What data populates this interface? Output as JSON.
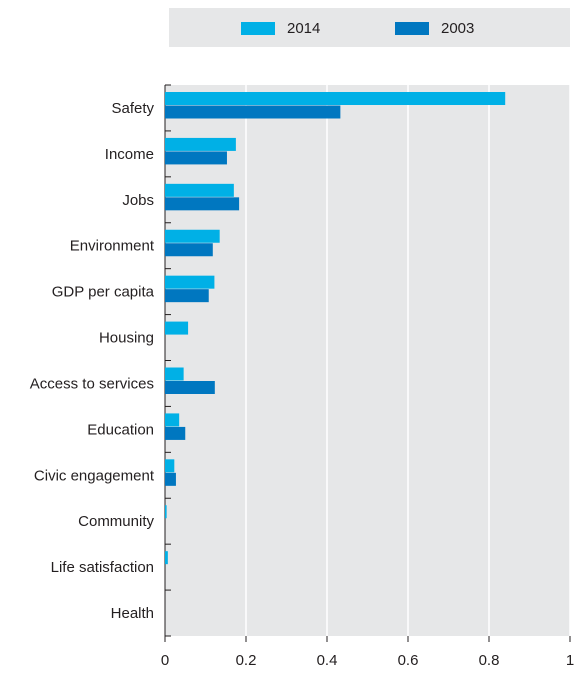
{
  "chart_data": {
    "type": "bar",
    "orientation": "horizontal",
    "categories": [
      "Safety",
      "Income",
      "Jobs",
      "Environment",
      "GDP per capita",
      "Housing",
      "Access to services",
      "Education",
      "Civic engagement",
      "Community",
      "Life satisfaction",
      "Health"
    ],
    "series": [
      {
        "name": "2014",
        "color": "#00b0e6",
        "values": [
          0.84,
          0.175,
          0.17,
          0.135,
          0.122,
          0.057,
          0.046,
          0.035,
          0.023,
          0.004,
          0.007,
          0.0
        ]
      },
      {
        "name": "2003",
        "color": "#0077c0",
        "values": [
          0.433,
          0.153,
          0.183,
          0.118,
          0.108,
          0.0,
          0.123,
          0.05,
          0.027,
          0.0,
          0.0,
          0.0
        ]
      }
    ],
    "xlim": [
      0,
      1
    ],
    "xticks": [
      "0",
      "0.2",
      "0.4",
      "0.6",
      "0.8",
      "1"
    ],
    "grid": true,
    "legend_position": "top"
  }
}
